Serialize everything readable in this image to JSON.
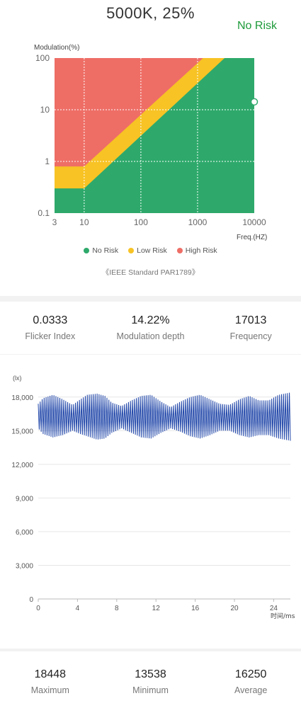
{
  "header": {
    "title": "5000K, 25%",
    "risk_status": "No Risk"
  },
  "chart_data": [
    {
      "type": "area",
      "xlabel": "Freq.(HZ)",
      "ylabel": "Modulation(%)",
      "x_scale": "log",
      "y_scale": "log",
      "xlim": [
        3,
        10000
      ],
      "ylim": [
        0.1,
        100
      ],
      "x_ticks": [
        "3",
        "10",
        "100",
        "1000",
        "10000"
      ],
      "y_ticks": [
        "100",
        "10",
        "1",
        "0.1"
      ],
      "grid": true,
      "legend_position": "bottom",
      "regions": [
        {
          "name": "No Risk",
          "color": "#2ea96b",
          "upper_boundary": [
            [
              3,
              0.3
            ],
            [
              10,
              0.3
            ],
            [
              3000,
              100
            ],
            [
              10000,
              100
            ]
          ]
        },
        {
          "name": "Low Risk",
          "color": "#f7c325",
          "upper_boundary": [
            [
              3,
              0.8
            ],
            [
              10,
              0.8
            ],
            [
              1250,
              100
            ],
            [
              10000,
              100
            ]
          ]
        },
        {
          "name": "High Risk",
          "color": "#ee6e66"
        }
      ],
      "marker": {
        "x": 10000,
        "y": 14.22
      },
      "source_note": "《IEEE Standard PAR1789》"
    },
    {
      "type": "line",
      "ylabel": "(lx)",
      "xlabel": "时间/ms",
      "xlim": [
        0,
        25.7
      ],
      "ylim": [
        0,
        19500
      ],
      "x_ticks": [
        "0",
        "4",
        "8",
        "12",
        "16",
        "20",
        "24"
      ],
      "y_ticks": [
        "0",
        "3,000",
        "6,000",
        "9,000",
        "12,000",
        "15,000",
        "18,000"
      ],
      "grid": true,
      "series": [
        {
          "color": "#1f45a8",
          "signal": {
            "mean_lx": 16250,
            "cycle_ms": 0.2,
            "envelope": [
              [
                0,
                15200,
                17400
              ],
              [
                0.5,
                14700,
                17900
              ],
              [
                1.5,
                14400,
                18200
              ],
              [
                2.5,
                14600,
                17800
              ],
              [
                3.5,
                15000,
                17300
              ],
              [
                4.3,
                14700,
                17800
              ],
              [
                5.0,
                14500,
                18200
              ],
              [
                6.0,
                14200,
                18300
              ],
              [
                6.8,
                14300,
                18100
              ],
              [
                7.5,
                14800,
                17500
              ],
              [
                8.5,
                15200,
                17200
              ],
              [
                9.5,
                14800,
                17700
              ],
              [
                10.5,
                14400,
                18100
              ],
              [
                11.5,
                14300,
                18200
              ],
              [
                12.5,
                14800,
                17600
              ],
              [
                13.5,
                15200,
                17100
              ],
              [
                14.5,
                14900,
                17600
              ],
              [
                15.5,
                14500,
                18000
              ],
              [
                16.5,
                14300,
                18200
              ],
              [
                17.5,
                14600,
                17800
              ],
              [
                18.5,
                15000,
                17400
              ],
              [
                19.5,
                15000,
                17300
              ],
              [
                20.5,
                14600,
                17800
              ],
              [
                21.5,
                14400,
                18100
              ],
              [
                22.5,
                14600,
                17700
              ],
              [
                23.5,
                14600,
                17700
              ],
              [
                24.5,
                14300,
                18200
              ],
              [
                25.7,
                14100,
                18400
              ]
            ]
          }
        }
      ]
    }
  ],
  "legend": [
    {
      "label": "No Risk",
      "color": "#2ea96b"
    },
    {
      "label": "Low Risk",
      "color": "#f7c325"
    },
    {
      "label": "High Risk",
      "color": "#ee6e66"
    }
  ],
  "stats": [
    {
      "value": "0.0333",
      "label": "Flicker Index"
    },
    {
      "value": "14.22%",
      "label": "Modulation depth"
    },
    {
      "value": "17013",
      "label": "Frequency"
    }
  ],
  "illuminance_stats": [
    {
      "value": "18448",
      "label": "Maximum"
    },
    {
      "value": "13538",
      "label": "Minimum"
    },
    {
      "value": "16250",
      "label": "Average"
    }
  ]
}
